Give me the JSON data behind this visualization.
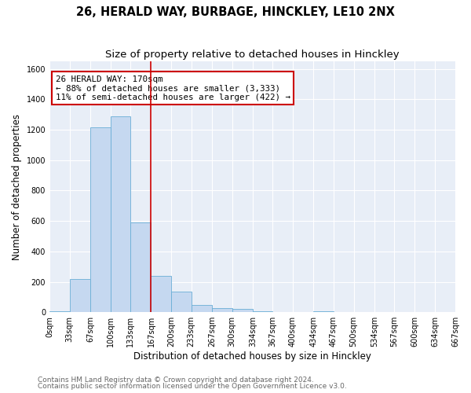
{
  "title": "26, HERALD WAY, BURBAGE, HINCKLEY, LE10 2NX",
  "subtitle": "Size of property relative to detached houses in Hinckley",
  "xlabel": "Distribution of detached houses by size in Hinckley",
  "ylabel": "Number of detached properties",
  "bin_edges": [
    0,
    33,
    67,
    100,
    133,
    167,
    200,
    233,
    267,
    300,
    334,
    367,
    400,
    434,
    467,
    500,
    534,
    567,
    600,
    634,
    667
  ],
  "bin_counts": [
    8,
    218,
    1215,
    1290,
    590,
    238,
    135,
    50,
    25,
    20,
    5,
    0,
    0,
    8,
    0,
    0,
    0,
    0,
    0,
    0
  ],
  "bar_color": "#c5d8f0",
  "bar_edge_color": "#6aaed6",
  "vline_x": 167,
  "vline_color": "#cc0000",
  "annotation_text": "26 HERALD WAY: 170sqm\n← 88% of detached houses are smaller (3,333)\n11% of semi-detached houses are larger (422) →",
  "annotation_box_color": "#ffffff",
  "annotation_box_edge_color": "#cc0000",
  "ylim": [
    0,
    1650
  ],
  "yticks": [
    0,
    200,
    400,
    600,
    800,
    1000,
    1200,
    1400,
    1600
  ],
  "xtick_labels": [
    "0sqm",
    "33sqm",
    "67sqm",
    "100sqm",
    "133sqm",
    "167sqm",
    "200sqm",
    "233sqm",
    "267sqm",
    "300sqm",
    "334sqm",
    "367sqm",
    "400sqm",
    "434sqm",
    "467sqm",
    "500sqm",
    "534sqm",
    "567sqm",
    "600sqm",
    "634sqm",
    "667sqm"
  ],
  "footer_line1": "Contains HM Land Registry data © Crown copyright and database right 2024.",
  "footer_line2": "Contains public sector information licensed under the Open Government Licence v3.0.",
  "background_color": "#ffffff",
  "plot_bg_color": "#e8eef7",
  "grid_color": "#ffffff",
  "title_fontsize": 10.5,
  "subtitle_fontsize": 9.5,
  "axis_label_fontsize": 8.5,
  "tick_fontsize": 7,
  "footer_fontsize": 6.5,
  "annotation_fontsize": 7.8
}
